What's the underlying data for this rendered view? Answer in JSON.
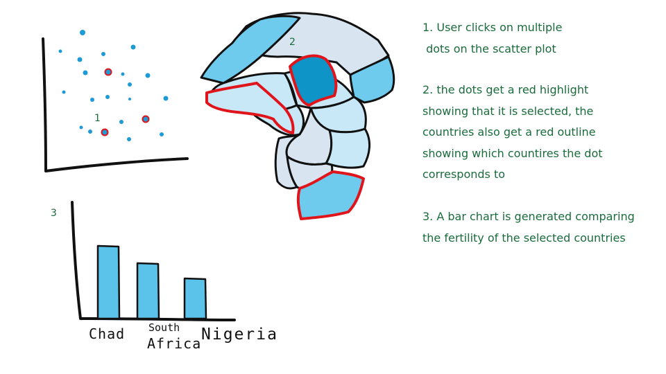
{
  "markers": {
    "scatter": "1",
    "map": "2",
    "bar": "3"
  },
  "steps": [
    {
      "lines": [
        "1. User clicks on multiple",
        " dots on the scatter plot"
      ]
    },
    {
      "lines": [
        "2. the dots get a red highlight",
        "showing that it is selected, the",
        "countries also get a red outline",
        "showing which countires the dot",
        "corresponds to"
      ]
    },
    {
      "lines": [
        "3. A bar chart is generated comparing",
        "the fertility of the selected countries"
      ]
    }
  ],
  "colors": {
    "dot": "#1e9ad6",
    "highlight": "#e0141b",
    "text": "#1a6b3c",
    "bar": "#5bc3ea",
    "map_light": "#c9e8f7",
    "map_pale": "#d8e4f0",
    "map_mid": "#6ecbee",
    "map_dark": "#0e94c6"
  },
  "chart_data": {
    "type": "bar",
    "categories": [
      "Chad",
      "South Africa",
      "Nigeria"
    ],
    "values": [
      105,
      80,
      58
    ]
  },
  "bar_labels": {
    "chad": "Chad",
    "south_top": "South",
    "south_bottom": "Africa",
    "nigeria": "Nigeria"
  }
}
